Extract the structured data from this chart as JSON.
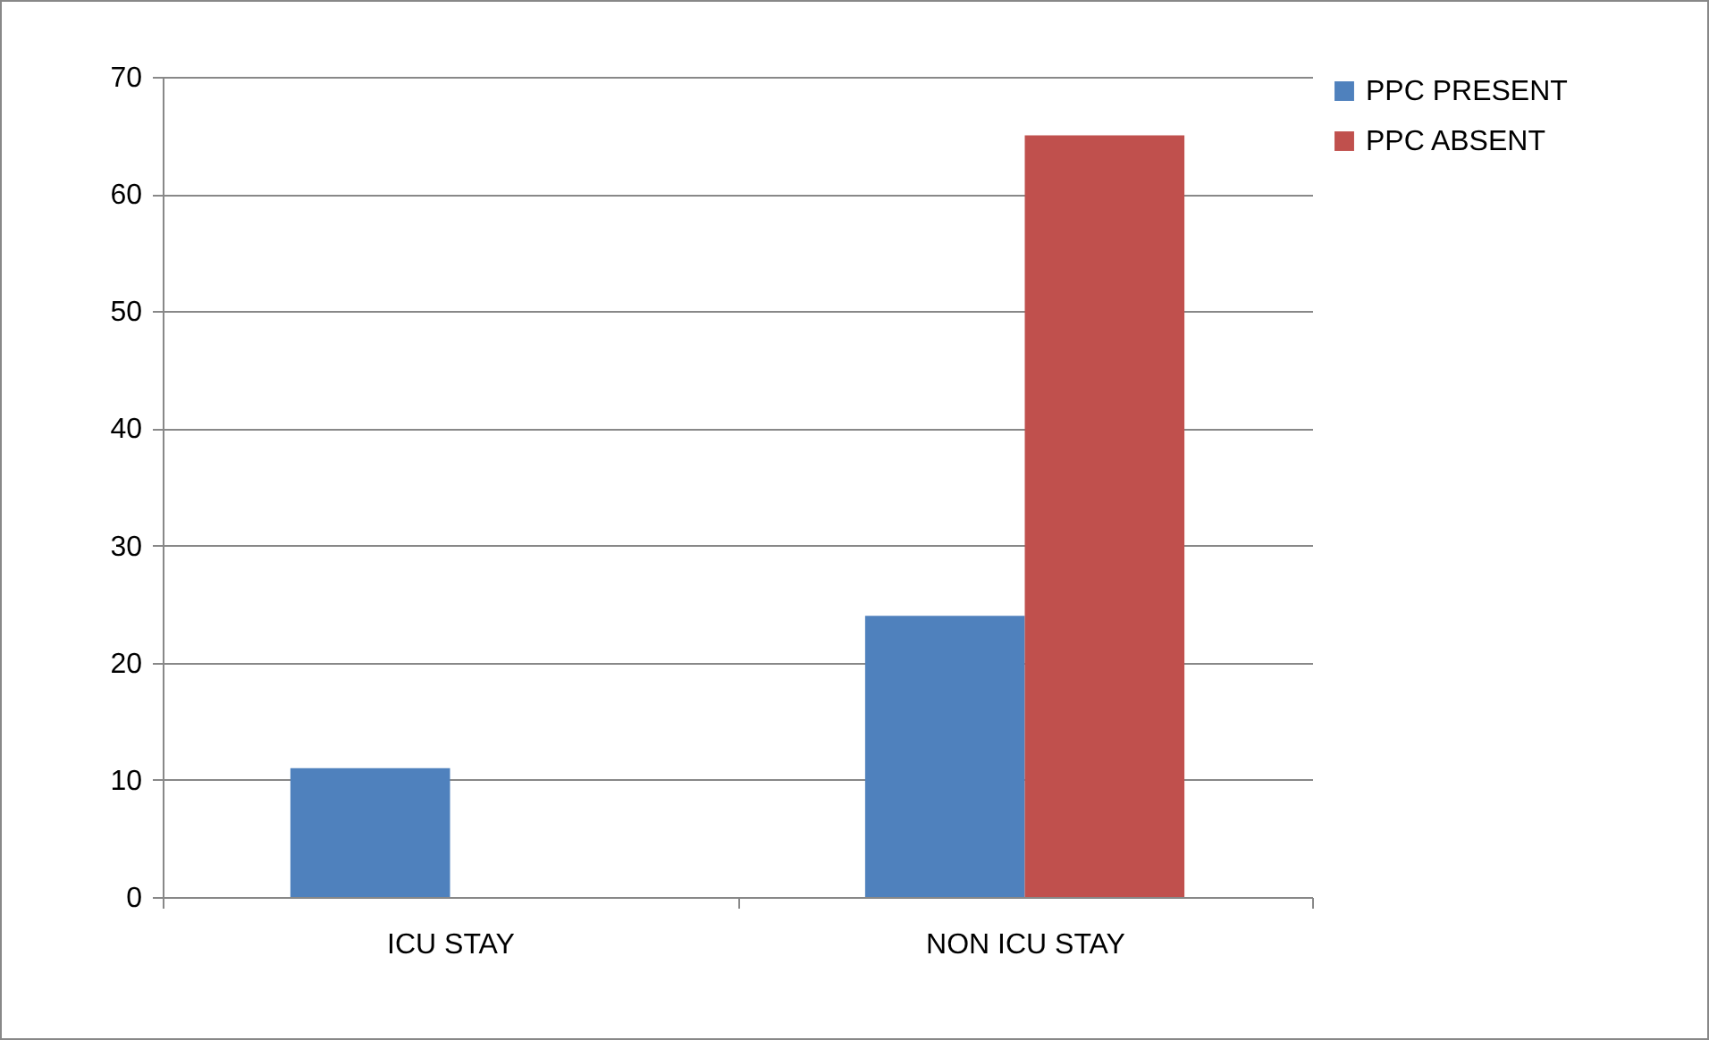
{
  "chart_data": {
    "type": "bar",
    "categories": [
      "ICU STAY",
      "NON ICU STAY"
    ],
    "series": [
      {
        "name": "PPC PRESENT",
        "color": "#4f81bd",
        "values": [
          11,
          24
        ]
      },
      {
        "name": "PPC ABSENT",
        "color": "#c0504d",
        "values": [
          0,
          65
        ]
      }
    ],
    "ylim": [
      0,
      70
    ],
    "yticks": [
      0,
      10,
      20,
      30,
      40,
      50,
      60,
      70
    ],
    "grid": "y",
    "legend": "right"
  }
}
